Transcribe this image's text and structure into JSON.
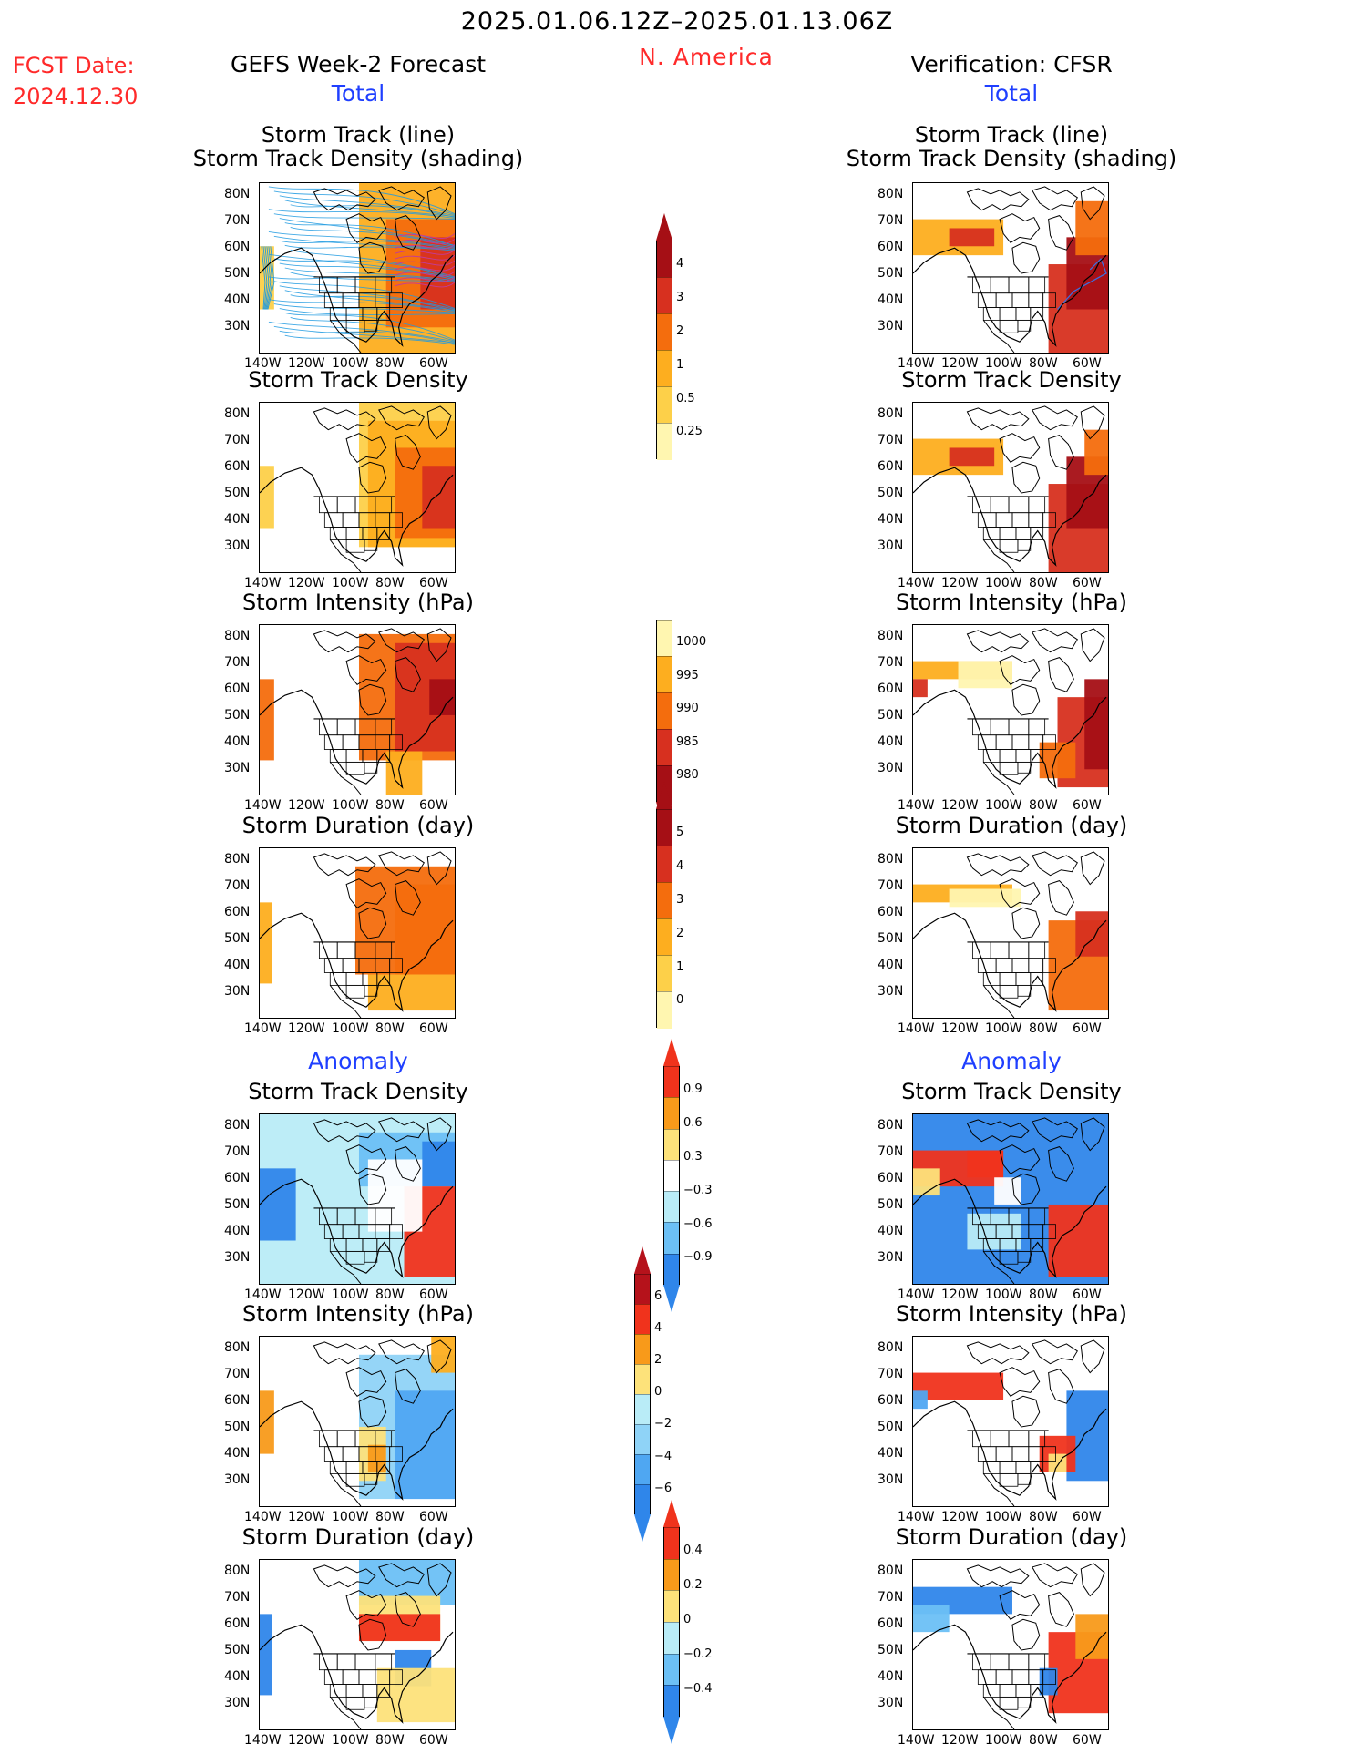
{
  "header": {
    "date_range": "2025.01.06.12Z–2025.01.13.06Z",
    "region": "N. America",
    "fcst_label": "FCST Date:",
    "fcst_date": "2024.12.30",
    "left_title": "GEFS Week-2 Forecast",
    "right_title": "Verification: CFSR",
    "left_total": "Total",
    "right_total": "Total",
    "left_anomaly": "Anomaly",
    "right_anomaly": "Anomaly"
  },
  "panels": {
    "left": [
      {
        "title_line1": "Storm Track (line)",
        "title_line2": "Storm Track Density (shading)",
        "kind": "track"
      },
      {
        "title_line1": "Storm Track Density",
        "title_line2": "",
        "kind": "density"
      },
      {
        "title_line1": "Storm Intensity (hPa)",
        "title_line2": "",
        "kind": "intensity"
      },
      {
        "title_line1": "Storm Duration (day)",
        "title_line2": "",
        "kind": "duration"
      },
      {
        "title_line1": "Storm Track Density",
        "title_line2": "",
        "kind": "anom_density"
      },
      {
        "title_line1": "Storm Intensity (hPa)",
        "title_line2": "",
        "kind": "anom_intensity"
      },
      {
        "title_line1": "Storm Duration (day)",
        "title_line2": "",
        "kind": "anom_duration"
      }
    ],
    "right": [
      {
        "title_line1": "Storm Track (line)",
        "title_line2": "Storm Track Density (shading)",
        "kind": "track"
      },
      {
        "title_line1": "Storm Track Density",
        "title_line2": "",
        "kind": "density"
      },
      {
        "title_line1": "Storm Intensity (hPa)",
        "title_line2": "",
        "kind": "intensity"
      },
      {
        "title_line1": "Storm Duration (day)",
        "title_line2": "",
        "kind": "duration"
      },
      {
        "title_line1": "Storm Track Density",
        "title_line2": "",
        "kind": "anom_density"
      },
      {
        "title_line1": "Storm Intensity (hPa)",
        "title_line2": "",
        "kind": "anom_intensity"
      },
      {
        "title_line1": "Storm Duration (day)",
        "title_line2": "",
        "kind": "anom_duration"
      }
    ]
  },
  "axes": {
    "lat_labels": [
      "80N",
      "70N",
      "60N",
      "50N",
      "40N",
      "30N"
    ],
    "lon_labels": [
      "140W",
      "120W",
      "100W",
      "80W",
      "60W"
    ]
  },
  "colorbars": [
    {
      "name": "track-density-colorbar",
      "labels": [
        "4",
        "3",
        "2",
        "1",
        "0.5",
        "0.25"
      ],
      "colors": [
        "#a50f15",
        "#d7301f",
        "#f46d0d",
        "#fdae1f",
        "#fdd049",
        "#fff6b0"
      ],
      "arrow_top": true,
      "arrow_bottom": false
    },
    {
      "name": "intensity-colorbar",
      "labels": [
        "1000",
        "995",
        "990",
        "985",
        "980"
      ],
      "colors": [
        "#fff6b0",
        "#fdae1f",
        "#f46d0d",
        "#d7301f",
        "#a50f15"
      ],
      "arrow_top": false,
      "arrow_bottom": true
    },
    {
      "name": "duration-colorbar",
      "labels": [
        "5",
        "4",
        "3",
        "2",
        "1",
        "0"
      ],
      "colors": [
        "#a50f15",
        "#d7301f",
        "#f46d0d",
        "#fdae1f",
        "#fdd049",
        "#fff6b0"
      ],
      "arrow_top": true,
      "arrow_bottom": false
    },
    {
      "name": "anomaly-density-colorbar",
      "labels": [
        "0.9",
        "0.6",
        "0.3",
        "−0.3",
        "−0.6",
        "−0.9"
      ],
      "colors": [
        "#f0331c",
        "#f89a1a",
        "#fde27a",
        "#ffffff",
        "#b9ecf7",
        "#6cc0f5",
        "#2f86ea"
      ],
      "arrow_top": true,
      "arrow_bottom": true
    },
    {
      "name": "anomaly-intensity-colorbar",
      "labels": [
        "6",
        "4",
        "2",
        "0",
        "−2",
        "−4",
        "−6"
      ],
      "colors": [
        "#b5121b",
        "#f0331c",
        "#f89a1a",
        "#fde27a",
        "#b9ecf7",
        "#8fd3f7",
        "#4fa7f2",
        "#2f86ea"
      ],
      "arrow_top": true,
      "arrow_bottom": true
    },
    {
      "name": "anomaly-duration-colorbar",
      "labels": [
        "0.4",
        "0.2",
        "0",
        "−0.2",
        "−0.4"
      ],
      "colors": [
        "#f0331c",
        "#f89a1a",
        "#fde27a",
        "#b9ecf7",
        "#6cc0f5",
        "#2f86ea"
      ],
      "arrow_top": true,
      "arrow_bottom": true
    }
  ]
}
